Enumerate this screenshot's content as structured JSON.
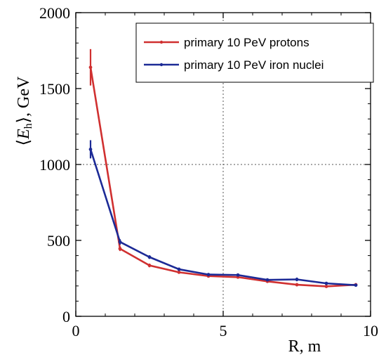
{
  "chart_data": {
    "type": "line",
    "xlabel": "R, m",
    "ylabel": "⟨Eₕ⟩, GeV",
    "ylabel_parts": {
      "open": "⟨",
      "symbol": "E",
      "subscript": "h",
      "close": "⟩",
      "unit": ", GeV"
    },
    "xlim": [
      0,
      10
    ],
    "ylim": [
      0,
      2000
    ],
    "x_ticks": [
      0,
      5,
      10
    ],
    "y_ticks": [
      0,
      500,
      1000,
      1500,
      2000
    ],
    "grid": "dotted at x=5 and y=1000",
    "legend_position": "top-right",
    "series": [
      {
        "name": "primary 10 PeV protons",
        "color": "#d03030",
        "x": [
          0.5,
          1.5,
          2.5,
          3.5,
          4.5,
          5.5,
          6.5,
          7.5,
          8.5,
          9.5
        ],
        "y": [
          1640,
          445,
          335,
          290,
          265,
          258,
          230,
          208,
          197,
          208
        ],
        "err": [
          120,
          15,
          12,
          10,
          10,
          10,
          10,
          10,
          10,
          8
        ]
      },
      {
        "name": "primary 10 PeV iron nuclei",
        "color": "#1c2a96",
        "x": [
          0.5,
          1.5,
          2.5,
          3.5,
          4.5,
          5.5,
          6.5,
          7.5,
          8.5,
          9.5
        ],
        "y": [
          1100,
          490,
          390,
          310,
          275,
          272,
          240,
          243,
          217,
          205
        ],
        "err": [
          60,
          18,
          12,
          10,
          10,
          10,
          10,
          12,
          10,
          8
        ]
      }
    ]
  }
}
